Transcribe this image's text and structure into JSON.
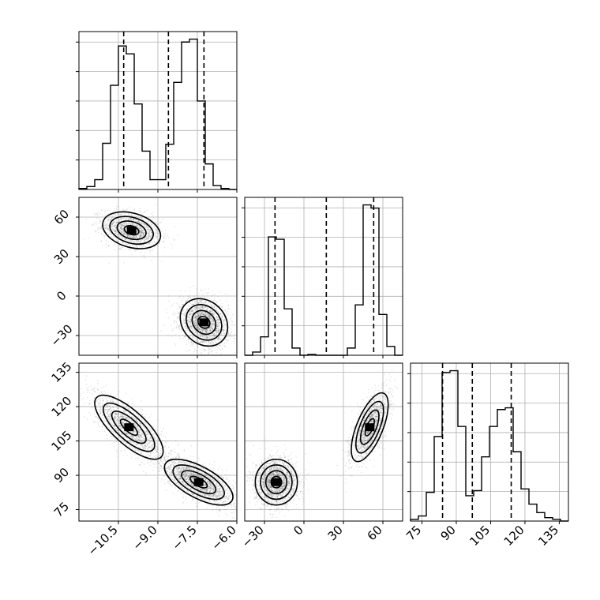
{
  "chart_data": {
    "type": "corner",
    "parameters": [
      {
        "ticks": [
          -10.5,
          -9.0,
          -7.5,
          -6.0
        ],
        "tick_labels": [
          "−10.5",
          "−9.0",
          "−7.5",
          "−6.0"
        ],
        "range": [
          -12.0,
          -6.0
        ],
        "quantiles": [
          -10.3,
          -8.6,
          -7.25
        ],
        "histogram": {
          "edges": [
            -12.0,
            -11.7,
            -11.4,
            -11.1,
            -10.8,
            -10.5,
            -10.2,
            -9.9,
            -9.6,
            -9.3,
            -9.0,
            -8.7,
            -8.4,
            -8.1,
            -7.8,
            -7.5,
            -7.2,
            -6.9,
            -6.6,
            -6.3,
            -6.0
          ],
          "counts": [
            1,
            3,
            10,
            47,
            106,
            146,
            138,
            87,
            39,
            10,
            10,
            46,
            109,
            150,
            153,
            90,
            26,
            4,
            1,
            0
          ]
        }
      },
      {
        "ticks": [
          -30,
          0,
          30,
          60
        ],
        "tick_labels": [
          "−30",
          "0",
          "30",
          "60"
        ],
        "range": [
          -45,
          75
        ],
        "quantiles": [
          -22,
          17,
          53
        ],
        "histogram": {
          "edges": [
            -45,
            -39,
            -33,
            -27,
            -21,
            -15,
            -9,
            -3,
            3,
            9,
            15,
            21,
            27,
            33,
            39,
            45,
            51,
            57,
            63,
            69,
            75
          ],
          "counts": [
            0,
            4,
            23,
            148,
            145,
            58,
            9,
            0,
            1,
            0,
            0,
            0,
            0,
            9,
            63,
            188,
            184,
            51,
            11,
            0
          ]
        }
      },
      {
        "ticks": [
          75,
          90,
          105,
          120,
          135
        ],
        "tick_labels": [
          "75",
          "90",
          "105",
          "120",
          "135"
        ],
        "range": [
          70,
          139
        ],
        "quantiles": [
          84,
          97,
          114
        ],
        "histogram": {
          "edges": [
            70,
            73.45,
            76.9,
            80.35,
            83.8,
            87.25,
            90.7,
            94.15,
            97.6,
            101.05,
            104.5,
            107.95,
            111.4,
            114.85,
            118.3,
            121.75,
            125.2,
            128.65,
            132.1,
            135.55,
            139
          ],
          "counts": [
            1,
            3,
            17,
            50,
            88,
            89,
            56,
            15,
            18,
            38,
            56,
            66,
            67,
            41,
            19,
            10,
            5,
            2,
            1,
            0
          ]
        }
      }
    ],
    "pair_plots": [
      {
        "x_param": 0,
        "y_param": 1,
        "modes": [
          {
            "center": [
              -10.0,
              50
            ],
            "sx": 0.55,
            "sy": 7,
            "rho": -0.3,
            "n": 1700
          },
          {
            "center": [
              -7.25,
              -20
            ],
            "sx": 0.45,
            "sy": 9,
            "rho": -0.2,
            "n": 2200
          }
        ]
      },
      {
        "x_param": 0,
        "y_param": 2,
        "modes": [
          {
            "center": [
              -10.1,
              111
            ],
            "sx": 0.65,
            "sy": 7,
            "rho": -0.75,
            "n": 1700
          },
          {
            "center": [
              -7.45,
              87
            ],
            "sx": 0.65,
            "sy": 5,
            "rho": -0.65,
            "n": 2200
          }
        ]
      },
      {
        "x_param": 1,
        "y_param": 2,
        "modes": [
          {
            "center": [
              -21,
              87
            ],
            "sx": 8,
            "sy": 5,
            "rho": 0.0,
            "n": 2200
          },
          {
            "center": [
              50,
              111
            ],
            "sx": 7,
            "sy": 7.5,
            "rho": 0.65,
            "n": 1700
          }
        ]
      }
    ],
    "contour_levels": [
      "0.5-sigma",
      "1-sigma",
      "1.5-sigma",
      "2-sigma"
    ],
    "grid": true,
    "colors": {
      "line": "#000000",
      "grid": "#b0b0b0",
      "points": "#000000"
    }
  }
}
